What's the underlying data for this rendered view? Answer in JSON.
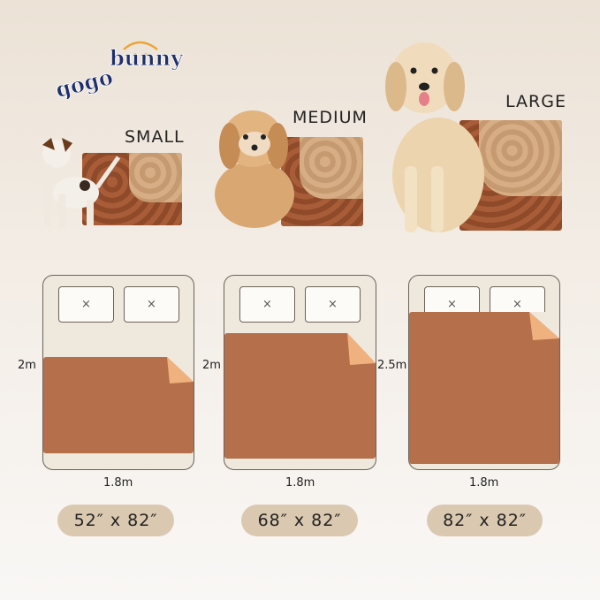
{
  "brand": {
    "logo_text": "gogobunny",
    "colors": {
      "navy": "#1f2f6b",
      "accent": "#eba43a"
    }
  },
  "sizes": [
    {
      "label": "SMALL",
      "height": "2m",
      "width": "1.8m",
      "dimensions": "52″ x 82″"
    },
    {
      "label": "MEDIUM",
      "height": "2m",
      "width": "1.8m",
      "dimensions": "68″ x 82″"
    },
    {
      "label": "LARGE",
      "height": "2.5m",
      "width": "1.8m",
      "dimensions": "82″ x 82″"
    }
  ],
  "pillow_icon": "×",
  "colors": {
    "sheet": "#b5704b",
    "sheet_fold": "#efb27f",
    "bed": "#efe8dc",
    "pill": "#dac9b0"
  }
}
